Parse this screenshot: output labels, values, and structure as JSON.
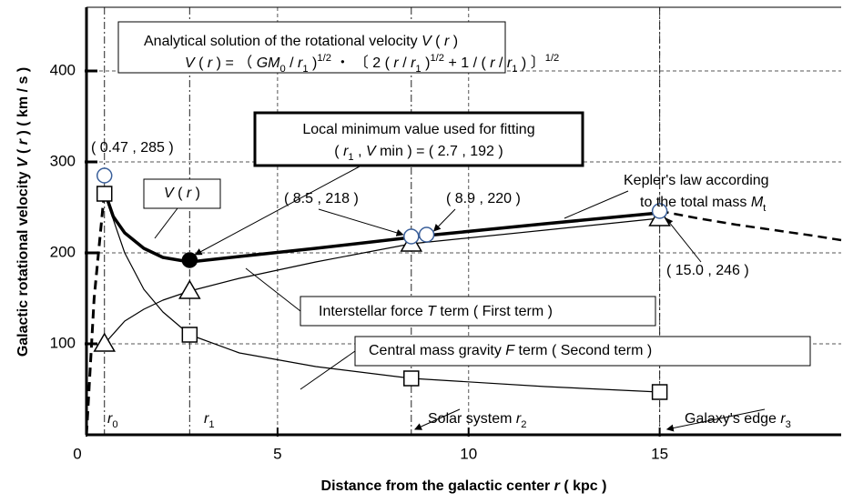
{
  "chart_data": {
    "type": "line",
    "x_label": [
      {
        "t": "Distance from the galactic center  "
      },
      {
        "t": "r",
        "s": "i"
      },
      {
        "t": "  ( kpc )"
      }
    ],
    "y_label": [
      {
        "t": "Galactic rotational velocity   "
      },
      {
        "t": "V",
        "s": "i"
      },
      {
        "t": " ( "
      },
      {
        "t": "r",
        "s": "i"
      },
      {
        "t": " )  ( km / s )"
      }
    ],
    "xlim": [
      0,
      19.75
    ],
    "ylim": [
      0,
      470
    ],
    "xticks": [
      0,
      5,
      10,
      15
    ],
    "yticks": [
      100,
      200,
      300,
      400
    ],
    "grid": true,
    "reference_lines": [
      0.47,
      2.7,
      8.5,
      15
    ],
    "series": [
      {
        "x": [
          0,
          0.2,
          0.47
        ],
        "values": [
          0,
          150,
          268
        ],
        "color": "#000000",
        "width": 3,
        "dash": true
      },
      {
        "x": [
          0.47,
          0.7,
          1,
          1.5,
          2,
          2.7,
          4,
          6,
          8.5,
          8.9,
          12,
          15
        ],
        "values": [
          268,
          240,
          222,
          205,
          195,
          190,
          196,
          205,
          217,
          219,
          232,
          244
        ],
        "color": "#000000",
        "width": 3.5
      },
      {
        "x": [
          15,
          16,
          17,
          18,
          19,
          19.75
        ],
        "values": [
          246,
          238,
          231,
          225,
          219,
          214
        ],
        "color": "#000000",
        "width": 2.5,
        "dash": true
      },
      {
        "x": [
          0.47,
          1,
          1.5,
          2,
          2.7,
          4,
          6,
          8.5,
          12,
          15
        ],
        "values": [
          100,
          125,
          138,
          148,
          158,
          172,
          190,
          210,
          225,
          238
        ],
        "color": "#000000",
        "width": 1.2
      },
      {
        "x": [
          0.47,
          1,
          1.5,
          2,
          2.7,
          4,
          6,
          8.5,
          12,
          15
        ],
        "values": [
          265,
          200,
          160,
          135,
          110,
          90,
          75,
          62,
          53,
          47
        ],
        "color": "#000000",
        "width": 1.2
      }
    ],
    "markers": [
      {
        "marker": "triangle",
        "x": [
          0.47,
          2.7,
          8.5,
          15
        ],
        "values": [
          100,
          158,
          210,
          238
        ],
        "color": "#000000",
        "fill": "#ffffff"
      },
      {
        "marker": "square",
        "x": [
          0.47,
          2.7,
          8.5,
          15
        ],
        "values": [
          265,
          110,
          62,
          47
        ],
        "color": "#000000",
        "fill": "#ffffff"
      },
      {
        "marker": "circle",
        "x": [
          0.47,
          8.5,
          8.9,
          15
        ],
        "values": [
          285,
          218,
          220,
          246
        ],
        "color": "#3a5f9a",
        "fill": "#ffffff"
      },
      {
        "marker": "dot",
        "x": [
          2.7
        ],
        "values": [
          192
        ],
        "color": "#000000",
        "fill": "#000000"
      }
    ],
    "annotations": [
      {
        "lines": [
          [
            {
              "t": "Analytical solution of the rotational velocity "
            },
            {
              "t": "V",
              "s": "i"
            },
            {
              "t": " ( "
            },
            {
              "t": "r",
              "s": "i"
            },
            {
              "t": " )"
            }
          ],
          [
            {
              "t": "V",
              "s": "i"
            },
            {
              "t": " ( "
            },
            {
              "t": "r",
              "s": "i"
            },
            {
              "t": " )  =  （ "
            },
            {
              "t": "GM",
              "s": "i"
            },
            {
              "t": "0",
              "s": "sub"
            },
            {
              "t": " / "
            },
            {
              "t": "r",
              "s": "i"
            },
            {
              "t": "1",
              "s": "sub"
            },
            {
              "t": " )"
            },
            {
              "t": "1/2",
              "s": "sup"
            },
            {
              "t": " ・ 〔 2 ( "
            },
            {
              "t": "r",
              "s": "i"
            },
            {
              "t": " / "
            },
            {
              "t": "r",
              "s": "i"
            },
            {
              "t": "1",
              "s": "sub"
            },
            {
              "t": " )"
            },
            {
              "t": "1/2",
              "s": "sup"
            },
            {
              "t": " + 1 / ( "
            },
            {
              "t": "r",
              "s": "i"
            },
            {
              "t": " / "
            },
            {
              "t": "r",
              "s": "i"
            },
            {
              "t": "1",
              "s": "sub"
            },
            {
              "t": " ) 〕"
            },
            {
              "t": "1/2",
              "s": "sup"
            }
          ]
        ]
      },
      {
        "lines": [
          [
            {
              "t": "Local minimum value used for fitting"
            }
          ],
          [
            {
              "t": "( "
            },
            {
              "t": "r",
              "s": "i"
            },
            {
              "t": "1",
              "s": "sub"
            },
            {
              "t": " , "
            },
            {
              "t": "V",
              "s": "i"
            },
            {
              "t": " min ) = ( 2.7 , 192 )"
            }
          ]
        ]
      },
      {
        "lines": [
          [
            {
              "t": "V",
              "s": "i"
            },
            {
              "t": " ( "
            },
            {
              "t": "r",
              "s": "i"
            },
            {
              "t": " )"
            }
          ]
        ]
      },
      {
        "lines": [
          [
            {
              "t": "Interstellar force "
            },
            {
              "t": "T",
              "s": "i"
            },
            {
              "t": " term ( First term )"
            }
          ]
        ]
      },
      {
        "lines": [
          [
            {
              "t": "Central mass gravity "
            },
            {
              "t": "F",
              "s": "i"
            },
            {
              "t": " term ( Second term )"
            }
          ]
        ]
      },
      {
        "lines": [
          [
            {
              "t": "Kepler's law according"
            }
          ],
          [
            {
              "t": "to the total mass "
            },
            {
              "t": "M",
              "s": "i"
            },
            {
              "t": "t",
              "s": "sub"
            }
          ]
        ]
      },
      {
        "lines": [
          [
            {
              "t": "( 0.47 ,  285 )"
            }
          ]
        ]
      },
      {
        "lines": [
          [
            {
              "t": "( 8.5 ,  218 )"
            }
          ]
        ]
      },
      {
        "lines": [
          [
            {
              "t": "( 8.9 ,  220 )"
            }
          ]
        ]
      },
      {
        "lines": [
          [
            {
              "t": "( 15.0 ,  246 )"
            }
          ]
        ]
      },
      {
        "lines": [
          [
            {
              "t": "r",
              "s": "i"
            },
            {
              "t": "0",
              "s": "sub"
            }
          ]
        ]
      },
      {
        "lines": [
          [
            {
              "t": "r",
              "s": "i"
            },
            {
              "t": "1",
              "s": "sub"
            }
          ]
        ]
      },
      {
        "lines": [
          [
            {
              "t": "Solar system "
            },
            {
              "t": "r",
              "s": "i"
            },
            {
              "t": "2",
              "s": "sub"
            }
          ]
        ]
      },
      {
        "lines": [
          [
            {
              "t": "Galaxy's edge "
            },
            {
              "t": "r",
              "s": "i"
            },
            {
              "t": "3",
              "s": "sub"
            }
          ]
        ]
      }
    ]
  }
}
